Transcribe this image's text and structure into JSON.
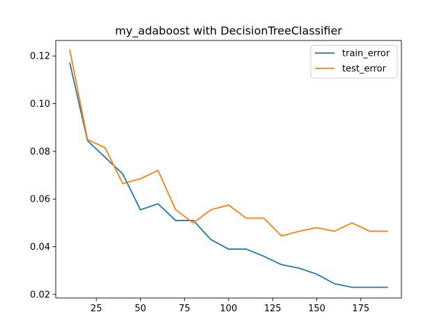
{
  "chart_data": {
    "type": "line",
    "title": "my_adaboost with DecisionTreeClassifier",
    "xlabel": "",
    "ylabel": "",
    "xlim": [
      2,
      198
    ],
    "ylim": [
      0.0185,
      0.1265
    ],
    "xticks": [
      25,
      50,
      75,
      100,
      125,
      150,
      175
    ],
    "yticks": [
      0.02,
      0.04,
      0.06,
      0.08,
      0.1,
      0.12
    ],
    "ytick_labels": [
      "0.02",
      "0.04",
      "0.06",
      "0.08",
      "0.10",
      "0.12"
    ],
    "legend_position": "top-right",
    "grid": false,
    "x": [
      10,
      20,
      30,
      40,
      50,
      60,
      70,
      80,
      90,
      100,
      110,
      120,
      130,
      140,
      150,
      160,
      170,
      180,
      190
    ],
    "series": [
      {
        "name": "train_error",
        "color": "#1f77b4",
        "values": [
          0.117,
          0.0845,
          0.0775,
          0.0705,
          0.0555,
          0.058,
          0.051,
          0.051,
          0.043,
          0.039,
          0.039,
          0.036,
          0.0325,
          0.031,
          0.0285,
          0.0245,
          0.023,
          0.023,
          0.023
        ]
      },
      {
        "name": "test_error",
        "color": "#ff7f0e",
        "values": [
          0.1225,
          0.085,
          0.0815,
          0.0665,
          0.0685,
          0.072,
          0.0555,
          0.05,
          0.0555,
          0.0575,
          0.052,
          0.052,
          0.0445,
          0.0465,
          0.048,
          0.0465,
          0.05,
          0.0465,
          0.0465
        ]
      }
    ]
  }
}
